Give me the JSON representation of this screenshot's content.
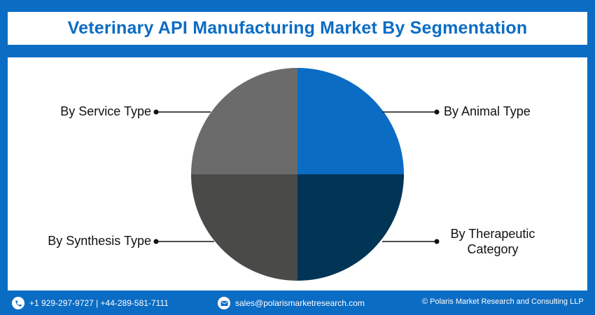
{
  "title": "Veterinary API Manufacturing Market By Segmentation",
  "segments": [
    {
      "label": "By Animal Type",
      "color": "#0b6cc4"
    },
    {
      "label": "By Therapeutic Category",
      "label_line1": "By Therapeutic",
      "label_line2": "Category",
      "color": "#003556"
    },
    {
      "label": "By Synthesis Type",
      "color": "#4a4a48"
    },
    {
      "label": "By Service Type",
      "color": "#6b6b6b"
    }
  ],
  "footer": {
    "phone": "+1 929-297-9727 | +44-289-581-7111",
    "email": "sales@polarismarketresearch.com",
    "copyright": "© Polaris Market Research and Consulting LLP",
    "phone_icon": "phone-icon",
    "email_icon": "email-icon"
  },
  "colors": {
    "background": "#0b6cc4",
    "panel": "#ffffff",
    "title_text": "#0b6cc4"
  }
}
